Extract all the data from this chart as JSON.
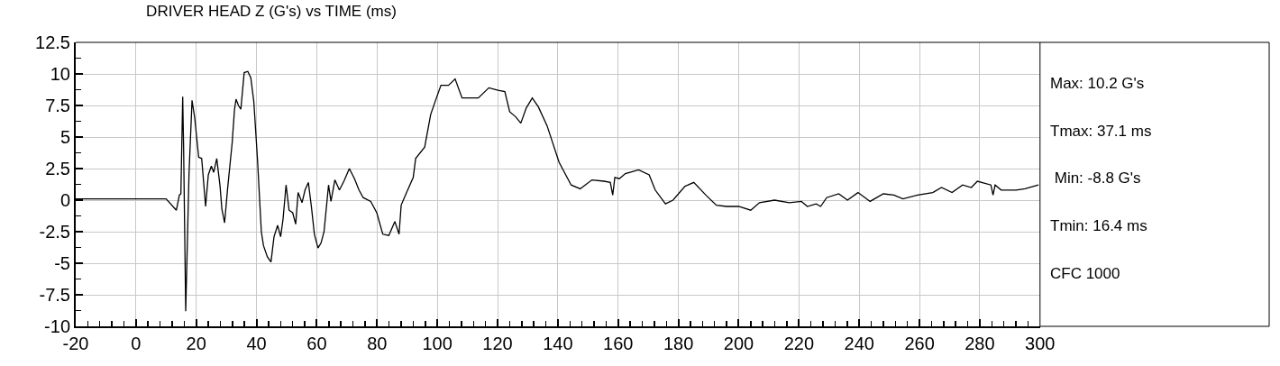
{
  "chart_data": {
    "type": "line",
    "title": "DRIVER HEAD Z (G's) vs TIME (ms)",
    "x": [
      -20,
      -10,
      0,
      10,
      13.4,
      14.4,
      14.9,
      15.5,
      15.8,
      16.5,
      17.6,
      18.6,
      19.5,
      20.8,
      21.8,
      23.1,
      24.0,
      25.0,
      25.8,
      26.8,
      27.9,
      28.5,
      29.4,
      30.4,
      31.9,
      32.7,
      33.2,
      34.0,
      34.8,
      35.9,
      37.1,
      38.1,
      39.1,
      40.3,
      41.6,
      42.3,
      43.6,
      44.8,
      45.8,
      47.0,
      48.0,
      48.8,
      49.8,
      50.8,
      52.0,
      53.0,
      53.8,
      55.1,
      56.1,
      57.2,
      58.2,
      59.2,
      60.4,
      61.4,
      62.4,
      63.9,
      64.7,
      66.0,
      67.5,
      69.0,
      70.8,
      72.5,
      74.0,
      75.4,
      77.9,
      79.9,
      81.9,
      83.9,
      85.9,
      87.3,
      88.0,
      89.8,
      92.0,
      92.8,
      95.8,
      97.8,
      99.7,
      101.2,
      103.7,
      105.9,
      108.2,
      110.7,
      113.6,
      117.1,
      120.1,
      122.4,
      124.0,
      126.0,
      127.7,
      129.5,
      131.5,
      133.5,
      136.4,
      140.4,
      144.4,
      147.4,
      151.3,
      155.3,
      157.4,
      158.2,
      158.9,
      160.4,
      162.4,
      166.8,
      170.3,
      172.3,
      175.7,
      178.2,
      182.2,
      185.1,
      189.1,
      192.6,
      196.0,
      200.0,
      204.0,
      206.9,
      211.9,
      216.8,
      220.8,
      222.8,
      225.7,
      227.2,
      229.2,
      233.2,
      236.1,
      239.6,
      243.6,
      248.0,
      251.5,
      254.5,
      259.4,
      264.4,
      267.3,
      270.8,
      274.3,
      277.2,
      279.2,
      283.7,
      284.4,
      285.1,
      287.1,
      292.1,
      295.0,
      299.5
    ],
    "series": [
      {
        "color": "#000000",
        "values": [
          0.1,
          0.1,
          0.1,
          0.1,
          -0.8,
          0.4,
          0.5,
          8.2,
          4.2,
          -8.8,
          2.1,
          7.9,
          6.5,
          3.4,
          3.3,
          -0.5,
          2.0,
          2.7,
          2.2,
          3.3,
          1.1,
          -0.7,
          -1.8,
          0.9,
          4.5,
          7.2,
          8.0,
          7.5,
          7.2,
          10.1,
          10.2,
          9.7,
          7.8,
          3.3,
          -2.5,
          -3.6,
          -4.5,
          -4.9,
          -2.9,
          -2.0,
          -2.9,
          -1.5,
          1.2,
          -0.8,
          -1.0,
          -1.9,
          0.6,
          -0.2,
          0.8,
          1.4,
          -0.5,
          -2.7,
          -3.8,
          -3.4,
          -2.5,
          1.2,
          -0.1,
          1.6,
          0.8,
          1.5,
          2.5,
          1.7,
          0.8,
          0.2,
          -0.1,
          -1.0,
          -2.7,
          -2.8,
          -1.7,
          -2.7,
          -0.4,
          0.6,
          1.8,
          3.3,
          4.2,
          6.8,
          8.1,
          9.1,
          9.1,
          9.6,
          8.1,
          8.1,
          8.1,
          8.9,
          8.7,
          8.6,
          7.0,
          6.6,
          6.1,
          7.3,
          8.1,
          7.4,
          5.9,
          3.0,
          1.2,
          0.9,
          1.6,
          1.5,
          1.4,
          0.4,
          1.8,
          1.7,
          2.1,
          2.4,
          2.0,
          0.8,
          -0.3,
          0.0,
          1.1,
          1.4,
          0.4,
          -0.4,
          -0.5,
          -0.5,
          -0.8,
          -0.2,
          0.0,
          -0.2,
          -0.1,
          -0.5,
          -0.3,
          -0.5,
          0.2,
          0.5,
          0.0,
          0.6,
          -0.1,
          0.5,
          0.4,
          0.1,
          0.4,
          0.6,
          1.0,
          0.6,
          1.2,
          1.0,
          1.5,
          1.2,
          0.4,
          1.2,
          0.8,
          0.8,
          0.9,
          1.2
        ]
      }
    ],
    "xlim": [
      -20,
      300
    ],
    "xticks": [
      -20,
      0,
      20,
      40,
      60,
      80,
      100,
      120,
      140,
      160,
      180,
      200,
      220,
      240,
      260,
      280,
      300
    ],
    "ylim": [
      -10,
      12.5
    ],
    "yticks": [
      12.5,
      10,
      7.5,
      5,
      2.5,
      0,
      -2.5,
      -5,
      -7.5,
      -10
    ],
    "grid": true,
    "annotations": [
      "Max: 10.2 G's",
      "Tmax: 37.1 ms",
      " Min: -8.8 G's",
      "Tmin: 16.4 ms",
      "CFC 1000"
    ]
  }
}
